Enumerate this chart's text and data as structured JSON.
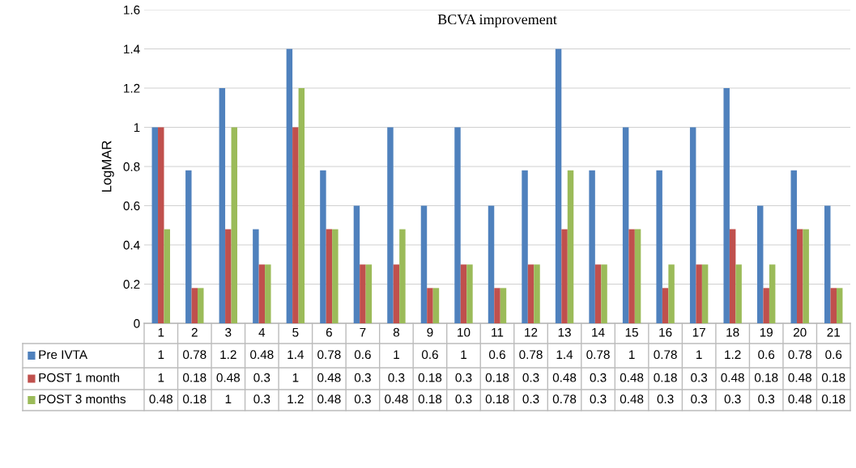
{
  "chart_data": {
    "type": "bar",
    "title": "BCVA improvement",
    "ylabel": "LogMAR",
    "categories": [
      "1",
      "2",
      "3",
      "4",
      "5",
      "6",
      "7",
      "8",
      "9",
      "10",
      "11",
      "12",
      "13",
      "14",
      "15",
      "16",
      "17",
      "18",
      "19",
      "20",
      "21"
    ],
    "series": [
      {
        "name": "Pre IVTA",
        "color": "#4f81bd",
        "values": [
          1,
          0.78,
          1.2,
          0.48,
          1.4,
          0.78,
          0.6,
          1,
          0.6,
          1,
          0.6,
          0.78,
          1.4,
          0.78,
          1,
          0.78,
          1,
          1.2,
          0.6,
          0.78,
          0.6
        ]
      },
      {
        "name": "POST 1 month",
        "color": "#c0504d",
        "values": [
          1,
          0.18,
          0.48,
          0.3,
          1,
          0.48,
          0.3,
          0.3,
          0.18,
          0.3,
          0.18,
          0.3,
          0.48,
          0.3,
          0.48,
          0.18,
          0.3,
          0.48,
          0.18,
          0.48,
          0.18
        ]
      },
      {
        "name": "POST 3 months",
        "color": "#9bbb59",
        "values": [
          0.48,
          0.18,
          1,
          0.3,
          1.2,
          0.48,
          0.3,
          0.48,
          0.18,
          0.3,
          0.18,
          0.3,
          0.78,
          0.3,
          0.48,
          0.3,
          0.3,
          0.3,
          0.3,
          0.48,
          0.18
        ]
      }
    ],
    "ylim": [
      0,
      1.6
    ],
    "yticks": [
      0,
      0.2,
      0.4,
      0.6,
      0.8,
      1,
      1.2,
      1.4,
      1.6
    ],
    "grid": "y",
    "data_labels": true,
    "legend": "bottom"
  }
}
